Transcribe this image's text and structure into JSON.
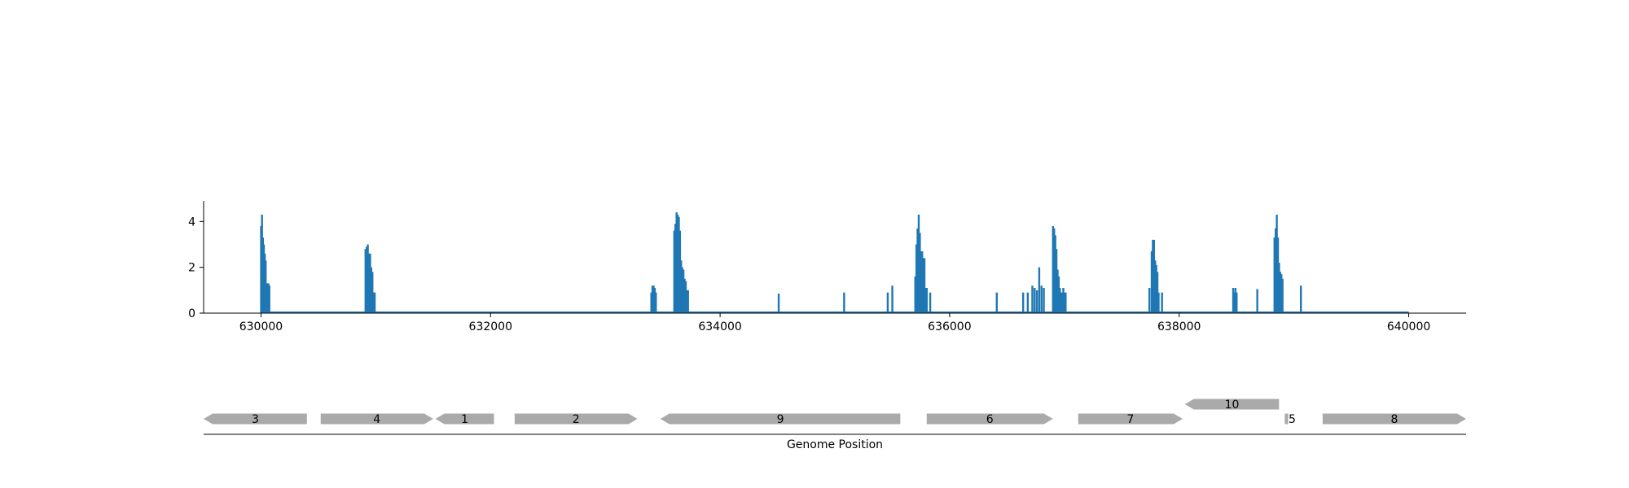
{
  "chart_data": [
    {
      "type": "bar",
      "xlim": [
        629500,
        640500
      ],
      "ylim": [
        0,
        4.9
      ],
      "xticks": [
        630000,
        632000,
        634000,
        636000,
        638000,
        640000
      ],
      "yticks": [
        0,
        2,
        4
      ],
      "grid": false,
      "baseline_range": [
        630000,
        640000
      ],
      "bar_color": "#1f77b4",
      "bars": [
        [
          630000,
          3.8
        ],
        [
          630008,
          4.3
        ],
        [
          630016,
          3.3
        ],
        [
          630024,
          3.0
        ],
        [
          630032,
          2.6
        ],
        [
          630040,
          2.3
        ],
        [
          630048,
          1.3
        ],
        [
          630056,
          1.1
        ],
        [
          630064,
          1.3
        ],
        [
          630072,
          1.2
        ],
        [
          630910,
          2.8
        ],
        [
          630920,
          2.9
        ],
        [
          630930,
          3.0
        ],
        [
          630940,
          2.6
        ],
        [
          630950,
          2.6
        ],
        [
          630960,
          2.0
        ],
        [
          630970,
          1.8
        ],
        [
          630980,
          0.9
        ],
        [
          630990,
          0.9
        ],
        [
          633400,
          0.9
        ],
        [
          633410,
          1.2
        ],
        [
          633420,
          1.2
        ],
        [
          633430,
          1.1
        ],
        [
          633440,
          0.9
        ],
        [
          633600,
          3.6
        ],
        [
          633610,
          3.9
        ],
        [
          633620,
          4.4
        ],
        [
          633630,
          4.3
        ],
        [
          633640,
          4.2
        ],
        [
          633650,
          3.6
        ],
        [
          633660,
          2.3
        ],
        [
          633670,
          2.0
        ],
        [
          633680,
          1.9
        ],
        [
          633690,
          1.5
        ],
        [
          633700,
          1.4
        ],
        [
          633710,
          1.0
        ],
        [
          633720,
          1.0
        ],
        [
          634510,
          0.85
        ],
        [
          635080,
          0.9
        ],
        [
          635460,
          0.9
        ],
        [
          635500,
          1.2
        ],
        [
          635700,
          1.6
        ],
        [
          635710,
          3.0
        ],
        [
          635720,
          3.7
        ],
        [
          635730,
          4.3
        ],
        [
          635740,
          3.5
        ],
        [
          635750,
          2.7
        ],
        [
          635760,
          2.7
        ],
        [
          635770,
          2.4
        ],
        [
          635780,
          2.4
        ],
        [
          635790,
          1.1
        ],
        [
          635800,
          1.1
        ],
        [
          635830,
          0.9
        ],
        [
          636410,
          0.9
        ],
        [
          636640,
          0.9
        ],
        [
          636680,
          0.9
        ],
        [
          636720,
          1.2
        ],
        [
          636740,
          1.1
        ],
        [
          636760,
          1.0
        ],
        [
          636780,
          2.0
        ],
        [
          636800,
          1.2
        ],
        [
          636820,
          1.1
        ],
        [
          636900,
          3.8
        ],
        [
          636910,
          3.7
        ],
        [
          636920,
          3.4
        ],
        [
          636930,
          2.8
        ],
        [
          636940,
          1.9
        ],
        [
          636950,
          1.6
        ],
        [
          636960,
          1.1
        ],
        [
          636970,
          0.9
        ],
        [
          636980,
          0.9
        ],
        [
          636990,
          1.1
        ],
        [
          637000,
          0.9
        ],
        [
          637010,
          0.9
        ],
        [
          637740,
          1.1
        ],
        [
          637760,
          2.7
        ],
        [
          637770,
          3.2
        ],
        [
          637780,
          3.2
        ],
        [
          637790,
          2.3
        ],
        [
          637800,
          2.1
        ],
        [
          637810,
          1.8
        ],
        [
          637820,
          0.9
        ],
        [
          637850,
          0.9
        ],
        [
          638470,
          1.1
        ],
        [
          638480,
          0.9
        ],
        [
          638490,
          1.1
        ],
        [
          638500,
          0.9
        ],
        [
          638680,
          1.05
        ],
        [
          638830,
          3.3
        ],
        [
          638840,
          3.7
        ],
        [
          638850,
          4.3
        ],
        [
          638860,
          3.3
        ],
        [
          638870,
          2.2
        ],
        [
          638880,
          1.8
        ],
        [
          638890,
          1.7
        ],
        [
          638900,
          1.5
        ],
        [
          639060,
          1.2
        ]
      ]
    },
    {
      "type": "gene-track",
      "xlabel": "Genome Position",
      "xlim": [
        629500,
        640500
      ],
      "fill_color": "#aaaaaa",
      "genes": [
        {
          "label": "3",
          "start": 629500,
          "end": 630400,
          "strand": "-",
          "row": 0
        },
        {
          "label": "4",
          "start": 630520,
          "end": 631500,
          "strand": "+",
          "row": 0
        },
        {
          "label": "1",
          "start": 631520,
          "end": 632030,
          "strand": "-",
          "row": 0
        },
        {
          "label": "2",
          "start": 632210,
          "end": 633280,
          "strand": "+",
          "row": 0
        },
        {
          "label": "9",
          "start": 633480,
          "end": 635570,
          "strand": "-",
          "row": 0
        },
        {
          "label": "6",
          "start": 635800,
          "end": 636900,
          "strand": "+",
          "row": 0
        },
        {
          "label": "7",
          "start": 637120,
          "end": 638030,
          "strand": "+",
          "row": 0
        },
        {
          "label": "10",
          "start": 638050,
          "end": 638870,
          "strand": "-",
          "row": 1
        },
        {
          "label": "5",
          "start": 638920,
          "end": 638950,
          "strand": "+",
          "row": 0
        },
        {
          "label": "8",
          "start": 639250,
          "end": 640500,
          "strand": "+",
          "row": 0
        }
      ]
    }
  ]
}
